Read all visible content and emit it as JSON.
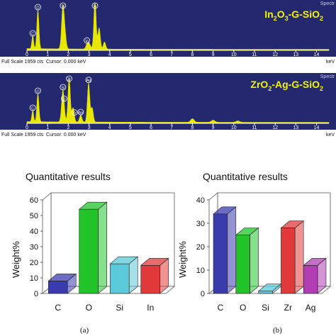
{
  "spectra": [
    {
      "title_parts": [
        {
          "t": "In"
        },
        {
          "s": "2"
        },
        {
          "t": "O"
        },
        {
          "s": "3"
        },
        {
          "t": "-G-SiO"
        },
        {
          "s": "2"
        }
      ],
      "spectrum_label": "Spectr",
      "scale_text": "Full Scale 1959 cts  Cursor: 0.000 keV",
      "kev_unit": "keV",
      "x_ticks": [
        "0",
        "1",
        "2",
        "3",
        "4",
        "5",
        "6",
        "7",
        "8",
        "9",
        "10",
        "11",
        "12",
        "13",
        "14"
      ],
      "peak_labels": [
        {
          "label": "C",
          "kev": 0.28
        },
        {
          "label": "O",
          "kev": 0.53
        },
        {
          "label": "Si",
          "kev": 1.74
        },
        {
          "label": "In",
          "kev": 3.29
        },
        {
          "label": "In",
          "kev": 2.9
        }
      ]
    },
    {
      "title_parts": [
        {
          "t": "ZrO"
        },
        {
          "s": "2"
        },
        {
          "t": "-Ag-G-SiO"
        },
        {
          "s": "2"
        }
      ],
      "spectrum_label": "Spectr",
      "scale_text": "Full Scale 1959 cts  Cursor: 0.000 keV",
      "kev_unit": "keV",
      "x_ticks": [
        "0",
        "1",
        "2",
        "3",
        "4",
        "5",
        "6",
        "7",
        "8",
        "9",
        "10",
        "11",
        "12",
        "13",
        "14"
      ],
      "peak_labels": [
        {
          "label": "C",
          "kev": 0.28
        },
        {
          "label": "O",
          "kev": 0.53
        },
        {
          "label": "Si",
          "kev": 1.74
        },
        {
          "label": "Zr",
          "kev": 2.04
        },
        {
          "label": "Zr",
          "kev": 1.8
        },
        {
          "label": "Ag",
          "kev": 2.98
        },
        {
          "label": "Ag",
          "kev": 2.6
        },
        {
          "label": "Zr",
          "kev": 2.3
        }
      ]
    }
  ],
  "colors": {
    "spectrum_bg": "#24286e",
    "peak_fill": "#e8e800",
    "bar_colors": {
      "C": "#3b3bb0",
      "O": "#22c42a",
      "Si": "#5ac9d9",
      "In": "#e23a3a",
      "Zr": "#e23a3a",
      "Ag": "#b23db5"
    }
  },
  "chart_data": [
    {
      "type": "bar",
      "title": "Quantitative results",
      "ylabel": "Weight%",
      "categories": [
        "C",
        "O",
        "Si",
        "In"
      ],
      "values": [
        8,
        54,
        19,
        18
      ],
      "ylim": [
        0,
        60
      ],
      "yticks": [
        "0",
        "10",
        "20",
        "30",
        "40",
        "50",
        "60"
      ],
      "grid": false,
      "caption": "(a)"
    },
    {
      "type": "bar",
      "title": "Quantitative results",
      "ylabel": "Weight%",
      "categories": [
        "C",
        "O",
        "Si",
        "Zr",
        "Ag"
      ],
      "values": [
        34,
        25,
        1,
        28,
        12
      ],
      "ylim": [
        0,
        40
      ],
      "yticks": [
        "0",
        "10",
        "20",
        "30",
        "40"
      ],
      "grid": false,
      "caption": "(b)"
    }
  ]
}
